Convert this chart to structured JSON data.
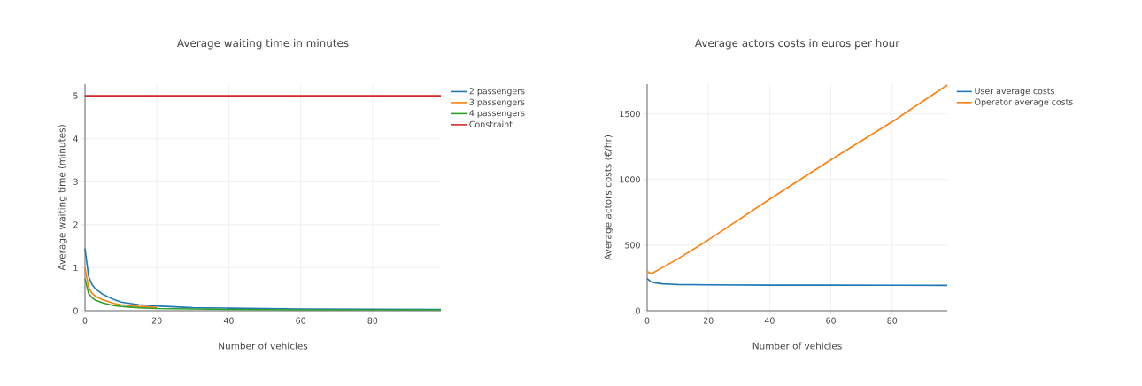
{
  "chart_data": [
    {
      "type": "line",
      "title": "Average waiting time in minutes",
      "xlabel": "Number of vehicles",
      "ylabel": "Average waiting time (minutes)",
      "xlim": [
        0,
        99
      ],
      "ylim": [
        0,
        5.27
      ],
      "xticks": [
        0,
        20,
        40,
        60,
        80
      ],
      "yticks": [
        0,
        1,
        2,
        3,
        4,
        5
      ],
      "grid": true,
      "legend": "top right",
      "series": [
        {
          "name": "2 passengers",
          "color": "#1f77b4",
          "x": [
            0,
            1,
            2,
            3,
            5,
            8,
            10,
            15,
            20,
            30,
            40,
            60,
            99
          ],
          "values": [
            1.45,
            0.8,
            0.6,
            0.5,
            0.38,
            0.26,
            0.2,
            0.14,
            0.11,
            0.07,
            0.06,
            0.04,
            0.03
          ]
        },
        {
          "name": "3 passengers",
          "color": "#ff7f0e",
          "x": [
            0,
            1,
            2,
            3,
            5,
            8,
            10,
            15,
            20
          ],
          "values": [
            1.0,
            0.55,
            0.4,
            0.33,
            0.25,
            0.17,
            0.14,
            0.1,
            0.08
          ]
        },
        {
          "name": "4 passengers",
          "color": "#2ca02c",
          "x": [
            0,
            1,
            2,
            3,
            5,
            8,
            10,
            15,
            20,
            30,
            40,
            60,
            99
          ],
          "values": [
            0.75,
            0.4,
            0.3,
            0.24,
            0.18,
            0.12,
            0.1,
            0.07,
            0.05,
            0.04,
            0.03,
            0.02,
            0.02
          ]
        },
        {
          "name": "Constraint",
          "color": "#d62728",
          "x": [
            0,
            99
          ],
          "values": [
            5,
            5
          ]
        }
      ]
    },
    {
      "type": "line",
      "title": "Average actors costs in euros per hour",
      "xlabel": "Number of vehicles",
      "ylabel": "Average actors costs (€/hr)",
      "xlim": [
        0,
        98
      ],
      "ylim": [
        0,
        1727
      ],
      "xticks": [
        0,
        20,
        40,
        60,
        80
      ],
      "yticks": [
        0,
        500,
        1000,
        1500
      ],
      "grid": true,
      "legend": "top right",
      "series": [
        {
          "name": "User average costs",
          "color": "#1f77b4",
          "x": [
            0,
            1,
            2,
            5,
            10,
            20,
            40,
            60,
            98
          ],
          "values": [
            245,
            225,
            215,
            205,
            200,
            197,
            195,
            195,
            193
          ]
        },
        {
          "name": "Operator average costs",
          "color": "#ff7f0e",
          "x": [
            0,
            1,
            2,
            5,
            10,
            20,
            40,
            60,
            80,
            98
          ],
          "values": [
            300,
            285,
            290,
            330,
            395,
            540,
            850,
            1150,
            1440,
            1720
          ]
        }
      ]
    }
  ]
}
